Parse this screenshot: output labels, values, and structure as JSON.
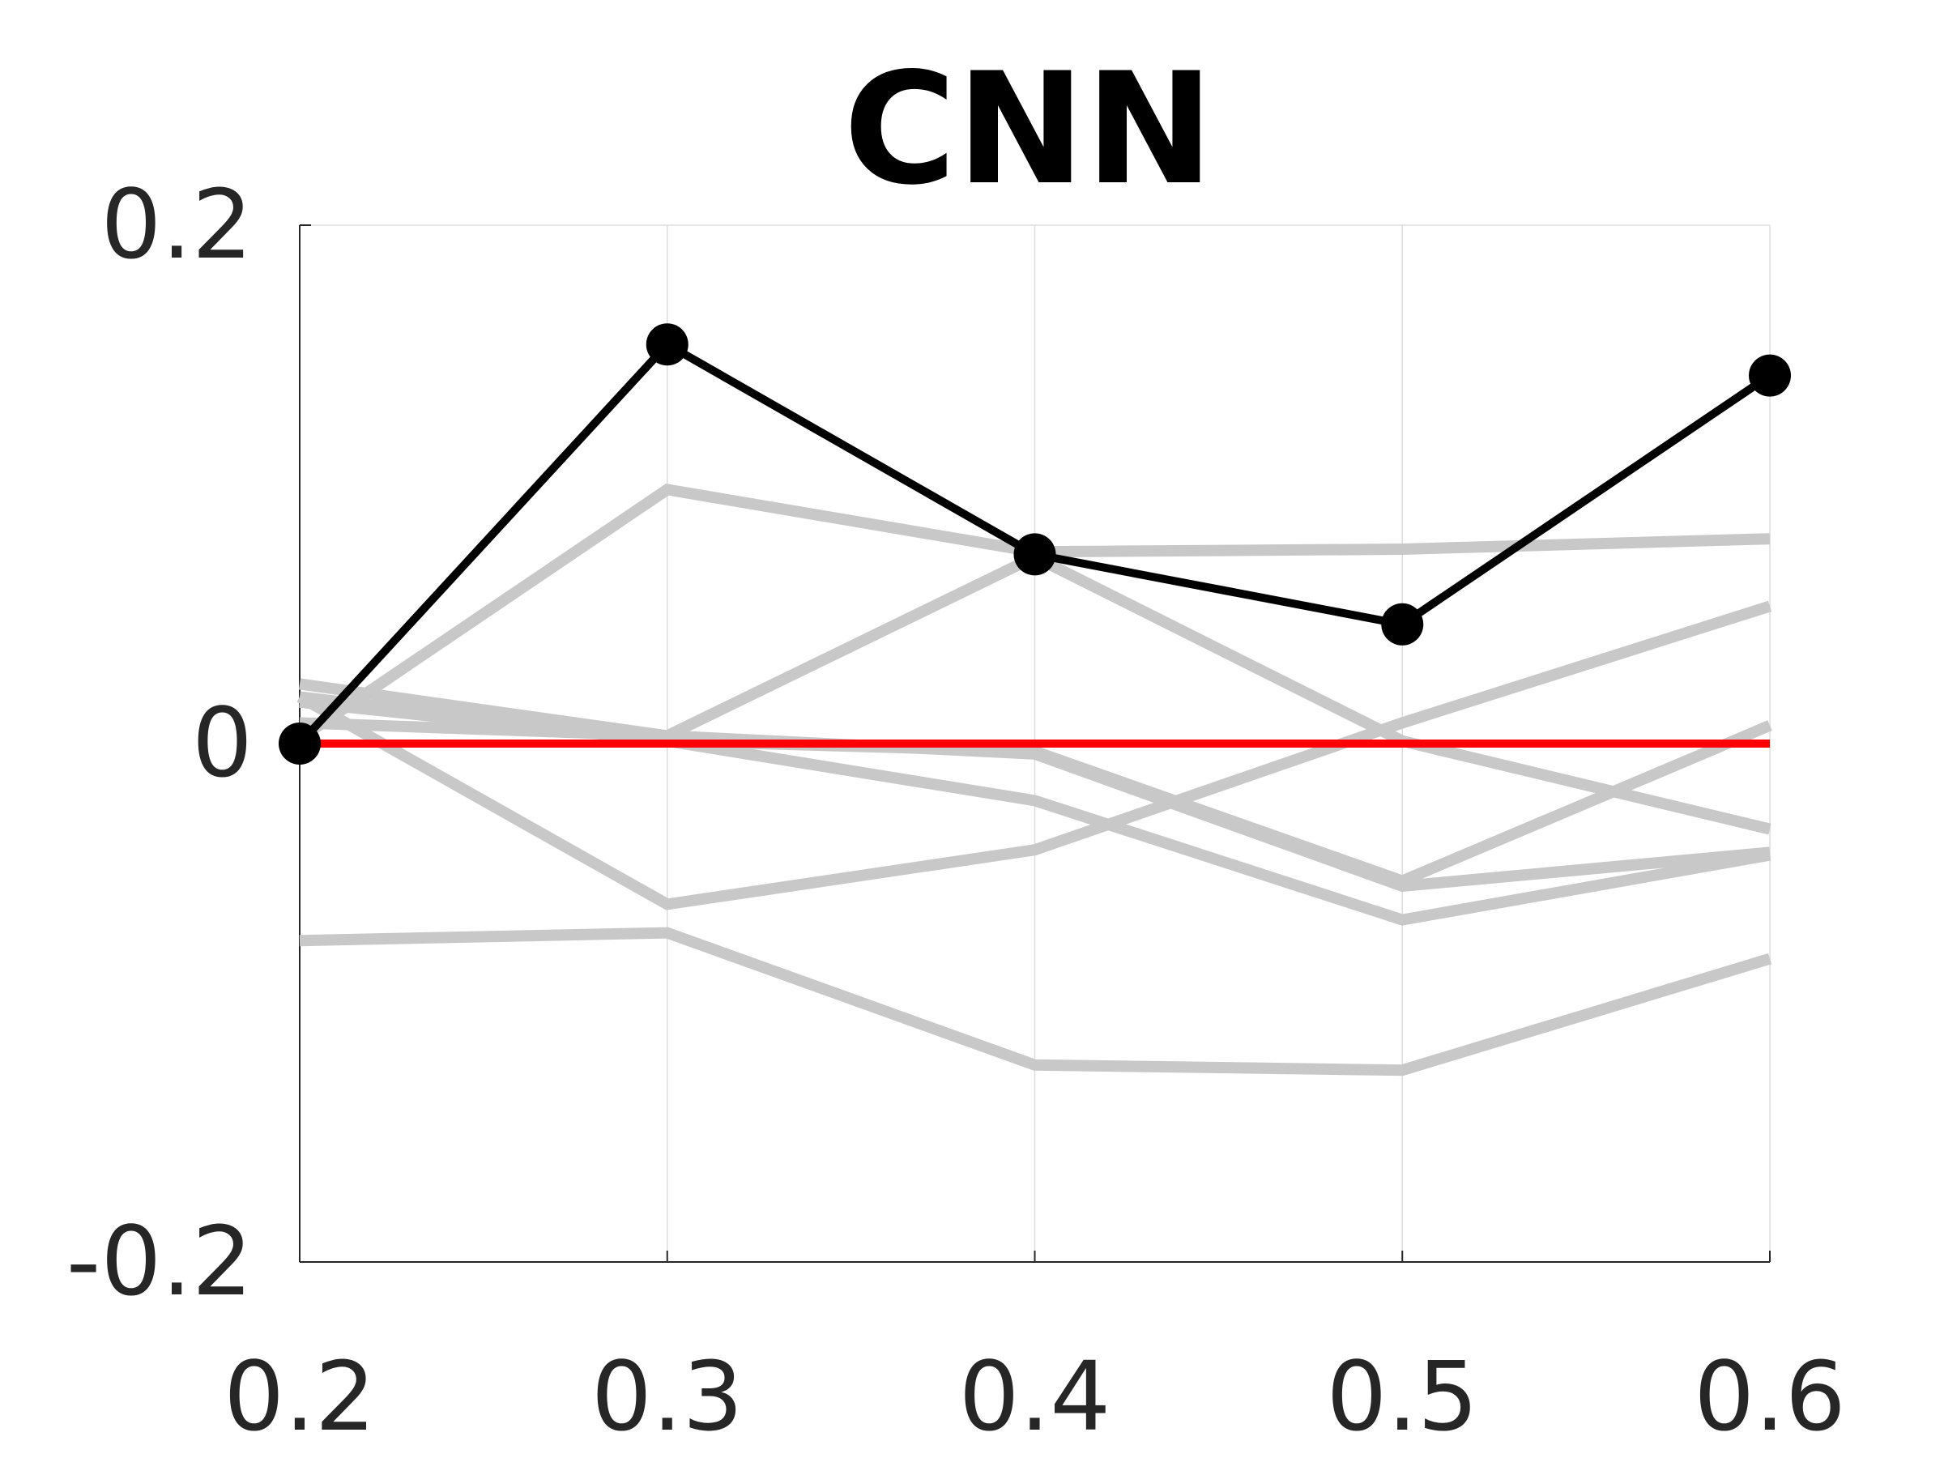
{
  "chart_data": {
    "type": "line",
    "title": "CNN",
    "xlabel": "",
    "ylabel": "",
    "x": [
      0.2,
      0.3,
      0.4,
      0.5,
      0.6
    ],
    "xticks": [
      "0.2",
      "0.3",
      "0.4",
      "0.5",
      "0.6"
    ],
    "ylim": [
      -0.2,
      0.2
    ],
    "yticks": [
      {
        "value": 0.2,
        "label": "0.2"
      },
      {
        "value": 0,
        "label": "0"
      },
      {
        "value": -0.2,
        "label": "-0.2"
      }
    ],
    "grid": "vertical",
    "legend": "none",
    "colors": {
      "highlight": "#000000",
      "background_series": "#c8c8c8",
      "reference": "#ff0000",
      "grid": "#dddddd",
      "axis": "#262626"
    },
    "background_series": [
      {
        "values": [
          0.002,
          0.098,
          0.074,
          0.075,
          0.079
        ]
      },
      {
        "values": [
          0.023,
          0.003,
          -0.004,
          -0.055,
          -0.042
        ]
      },
      {
        "values": [
          0.018,
          -0.062,
          -0.041,
          0.008,
          0.053
        ]
      },
      {
        "values": [
          0.008,
          0.003,
          0.072,
          0.001,
          -0.033
        ]
      },
      {
        "values": [
          0.016,
          0.001,
          -0.022,
          -0.068,
          -0.043
        ]
      },
      {
        "values": [
          -0.076,
          -0.073,
          -0.124,
          -0.126,
          -0.083
        ]
      },
      {
        "values": [
          0.018,
          0.001,
          -0.003,
          -0.053,
          0.007
        ]
      }
    ],
    "highlight_series": {
      "values": [
        0,
        0.154,
        0.073,
        0.046,
        0.142
      ]
    },
    "reference_line": {
      "y": 0
    }
  }
}
